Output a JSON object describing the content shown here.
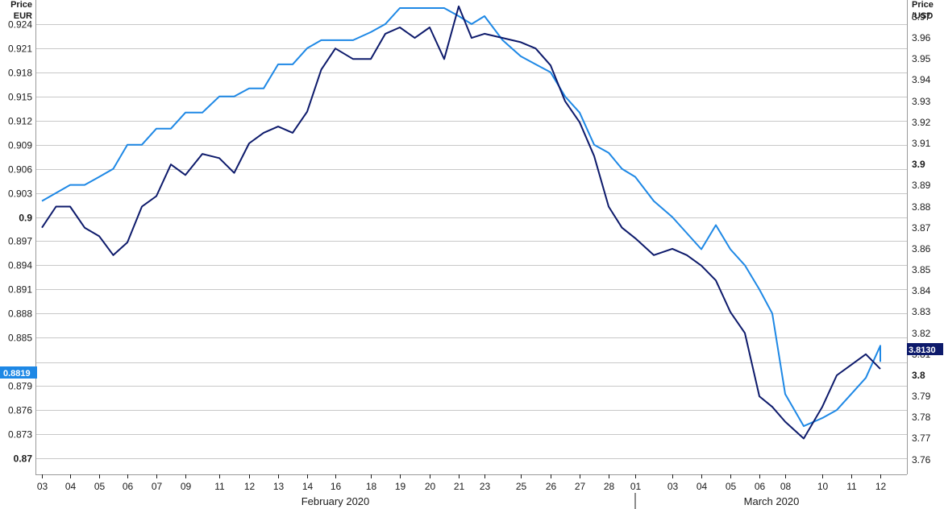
{
  "left_axis": {
    "title_line1": "Price",
    "title_line2": "EUR"
  },
  "right_axis": {
    "title_line1": "Price",
    "title_line2": "/USD"
  },
  "badges": {
    "left_value": "0.8819",
    "right_value": "3.8130",
    "left_color": "#1e88e5",
    "right_color": "#0d1a6b"
  },
  "months": [
    "February 2020",
    "March 2020"
  ],
  "chart_data": {
    "type": "line",
    "title": "",
    "grid": true,
    "legend": "none",
    "x_ticks": [
      "03",
      "04",
      "05",
      "06",
      "07",
      "09",
      "11",
      "12",
      "13",
      "14",
      "16",
      "18",
      "19",
      "20",
      "21",
      "23",
      "25",
      "26",
      "27",
      "28",
      "01",
      "03",
      "04",
      "05",
      "06",
      "08",
      "10",
      "11",
      "12"
    ],
    "ylim_left": [
      0.868,
      0.927
    ],
    "yticks_left": [
      0.87,
      0.873,
      0.876,
      0.879,
      0.8819,
      0.885,
      0.888,
      0.891,
      0.894,
      0.897,
      0.9,
      0.903,
      0.906,
      0.909,
      0.912,
      0.915,
      0.918,
      0.921,
      0.924
    ],
    "yticks_left_labels": [
      "0.87",
      "0.873",
      "0.876",
      "0.879",
      "0.8819",
      "0.885",
      "0.888",
      "0.891",
      "0.894",
      "0.897",
      "0.9",
      "0.903",
      "0.906",
      "0.909",
      "0.912",
      "0.915",
      "0.918",
      "0.921",
      "0.924"
    ],
    "ylim_right": [
      3.753,
      3.978
    ],
    "yticks_right": [
      3.76,
      3.77,
      3.78,
      3.79,
      3.8,
      3.81,
      3.82,
      3.83,
      3.84,
      3.85,
      3.86,
      3.87,
      3.88,
      3.89,
      3.9,
      3.91,
      3.92,
      3.93,
      3.94,
      3.95,
      3.96,
      3.97
    ],
    "yticks_right_labels": [
      "3.76",
      "3.77",
      "3.78",
      "3.79",
      "3.8",
      "3.81",
      "3.82",
      "3.83",
      "3.84",
      "3.85",
      "3.86",
      "3.87",
      "3.88",
      "3.89",
      "3.9",
      "3.91",
      "3.92",
      "3.93",
      "3.94",
      "3.95",
      "3.96",
      "3.97"
    ],
    "series": [
      {
        "axis": "left",
        "color": "#1e88e5",
        "x": [
          0,
          0.5,
          1,
          1.5,
          2,
          2.5,
          3,
          3.5,
          4,
          4.5,
          5,
          5.5,
          6,
          6.5,
          7,
          7.5,
          8,
          8.5,
          9,
          9.5,
          10,
          10.5,
          11,
          11.5,
          12,
          12.5,
          13,
          13.5,
          14,
          14.5,
          15,
          15.5,
          16,
          16.5,
          17,
          17.5,
          18,
          18.5,
          19,
          19.5,
          20,
          20.5,
          21,
          21.5,
          22,
          22.5,
          23,
          23.5,
          24,
          24.5,
          25,
          25.5,
          26,
          26.5,
          27,
          27.5,
          28,
          28.5,
          29
        ],
        "values": [
          0.902,
          0.903,
          0.904,
          0.904,
          0.905,
          0.906,
          0.909,
          0.909,
          0.911,
          0.911,
          0.913,
          0.913,
          0.915,
          0.915,
          0.916,
          0.916,
          0.919,
          0.919,
          0.921,
          0.922,
          0.922,
          0.922,
          0.923,
          0.924,
          0.926,
          0.926,
          0.926,
          0.926,
          0.925,
          0.924,
          0.925,
          0.922,
          0.92,
          0.919,
          0.918,
          0.915,
          0.913,
          0.909,
          0.908,
          0.906,
          0.905,
          0.902,
          0.9,
          0.898,
          0.896,
          0.899,
          0.896,
          0.894,
          0.891,
          0.888,
          0.878,
          0.874,
          0.875,
          0.876,
          0.878,
          0.88,
          0.884,
          0.882,
          0.8819
        ]
      },
      {
        "axis": "right",
        "color": "#0d1a6b",
        "x": [
          0,
          0.5,
          1,
          1.5,
          2,
          2.5,
          3,
          3.5,
          4,
          4.5,
          5,
          5.5,
          6,
          6.5,
          7,
          7.5,
          8,
          8.5,
          9,
          9.5,
          10,
          10.5,
          11,
          11.5,
          12,
          12.5,
          13,
          13.5,
          14,
          14.5,
          15,
          15.5,
          16,
          16.5,
          17,
          17.5,
          18,
          18.5,
          19,
          19.5,
          20,
          20.5,
          21,
          21.5,
          22,
          22.5,
          23,
          23.5,
          24,
          24.5,
          25,
          25.5,
          26,
          26.5,
          27,
          27.5,
          28,
          28.5,
          29
        ],
        "values": [
          3.87,
          3.88,
          3.88,
          3.87,
          3.866,
          3.857,
          3.863,
          3.88,
          3.885,
          3.9,
          3.895,
          3.905,
          3.903,
          3.896,
          3.91,
          3.915,
          3.918,
          3.915,
          3.925,
          3.945,
          3.955,
          3.95,
          3.95,
          3.962,
          3.965,
          3.96,
          3.965,
          3.95,
          3.975,
          3.96,
          3.962,
          3.96,
          3.958,
          3.955,
          3.947,
          3.93,
          3.92,
          3.904,
          3.88,
          3.87,
          3.865,
          3.857,
          3.86,
          3.857,
          3.852,
          3.845,
          3.83,
          3.82,
          3.79,
          3.785,
          3.778,
          3.77,
          3.785,
          3.8,
          3.805,
          3.81,
          3.803,
          3.803,
          3.813
        ]
      }
    ]
  }
}
